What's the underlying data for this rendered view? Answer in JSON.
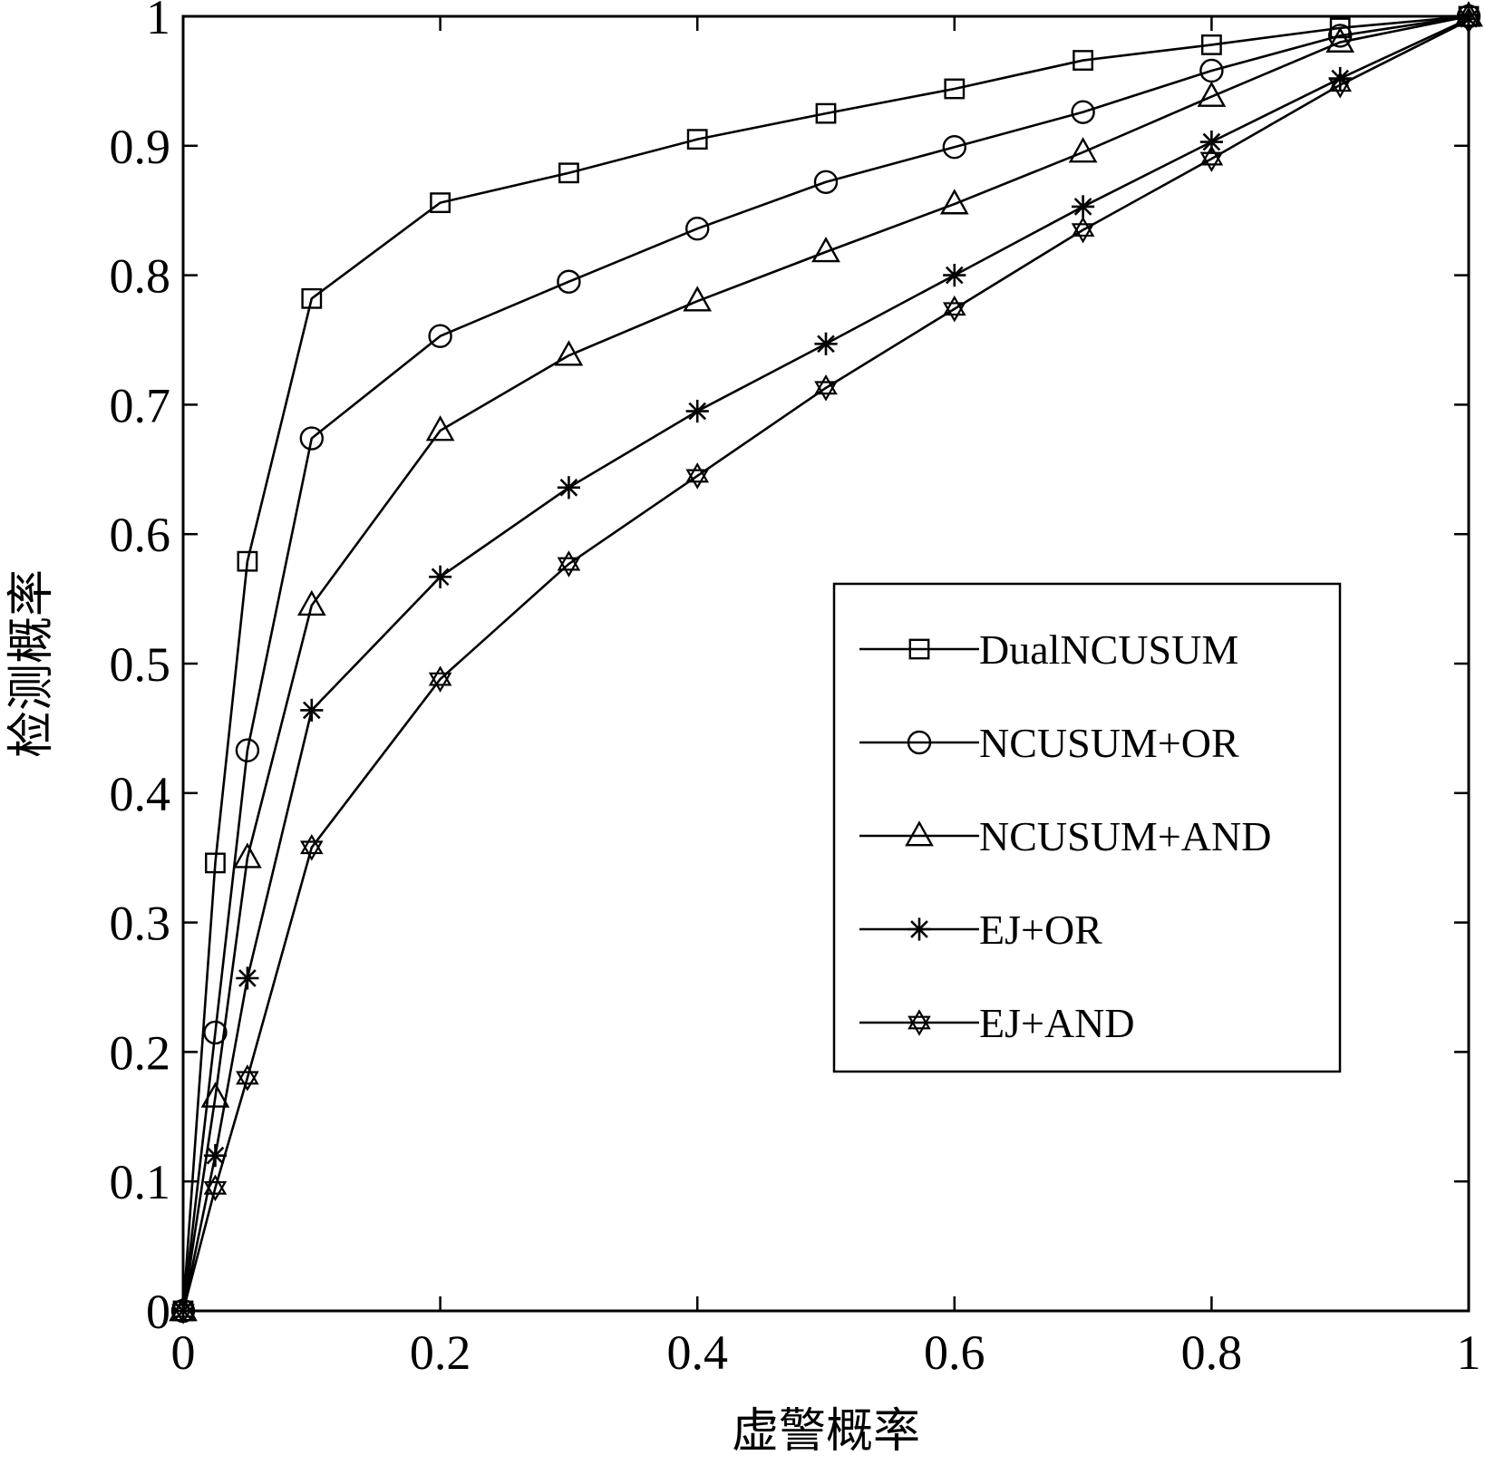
{
  "chart_data": {
    "type": "line",
    "title": "",
    "xlabel": "虚警概率",
    "ylabel": "检测概率",
    "xlim": [
      0,
      1
    ],
    "ylim": [
      0,
      1
    ],
    "x_ticks": [
      "0",
      "0.2",
      "0.4",
      "0.6",
      "0.8",
      "1"
    ],
    "y_ticks": [
      "0",
      "0.1",
      "0.2",
      "0.3",
      "0.4",
      "0.5",
      "0.6",
      "0.7",
      "0.8",
      "0.9",
      "1"
    ],
    "grid": false,
    "legend_position": "center-right",
    "line_color": "#000000",
    "series": [
      {
        "name": "DualNCUSUM",
        "marker": "square",
        "x": [
          0,
          0.025,
          0.05,
          0.1,
          0.2,
          0.3,
          0.4,
          0.5,
          0.6,
          0.7,
          0.8,
          0.9,
          1.0
        ],
        "y": [
          0,
          0.346,
          0.579,
          0.782,
          0.856,
          0.879,
          0.905,
          0.925,
          0.944,
          0.966,
          0.978,
          0.991,
          1.0
        ]
      },
      {
        "name": "NCUSUM+OR",
        "marker": "circle",
        "x": [
          0,
          0.025,
          0.05,
          0.1,
          0.2,
          0.3,
          0.4,
          0.5,
          0.6,
          0.7,
          0.8,
          0.9,
          1.0
        ],
        "y": [
          0,
          0.215,
          0.433,
          0.674,
          0.753,
          0.795,
          0.836,
          0.872,
          0.899,
          0.926,
          0.958,
          0.985,
          1.0
        ]
      },
      {
        "name": "NCUSUM+AND",
        "marker": "triangle",
        "x": [
          0,
          0.025,
          0.05,
          0.1,
          0.2,
          0.3,
          0.4,
          0.5,
          0.6,
          0.7,
          0.8,
          0.9,
          1.0
        ],
        "y": [
          0,
          0.165,
          0.35,
          0.545,
          0.68,
          0.738,
          0.78,
          0.818,
          0.855,
          0.895,
          0.938,
          0.98,
          1.0
        ]
      },
      {
        "name": "EJ+OR",
        "marker": "asterisk",
        "x": [
          0,
          0.025,
          0.05,
          0.1,
          0.2,
          0.3,
          0.4,
          0.5,
          0.6,
          0.7,
          0.8,
          0.9,
          1.0
        ],
        "y": [
          0,
          0.12,
          0.257,
          0.464,
          0.567,
          0.636,
          0.695,
          0.747,
          0.8,
          0.853,
          0.903,
          0.952,
          0.998
        ]
      },
      {
        "name": "EJ+AND",
        "marker": "hexagram",
        "x": [
          0,
          0.025,
          0.05,
          0.1,
          0.2,
          0.3,
          0.4,
          0.5,
          0.6,
          0.7,
          0.8,
          0.9,
          1.0
        ],
        "y": [
          0,
          0.095,
          0.18,
          0.358,
          0.488,
          0.577,
          0.645,
          0.713,
          0.774,
          0.835,
          0.89,
          0.947,
          0.997
        ]
      }
    ]
  }
}
